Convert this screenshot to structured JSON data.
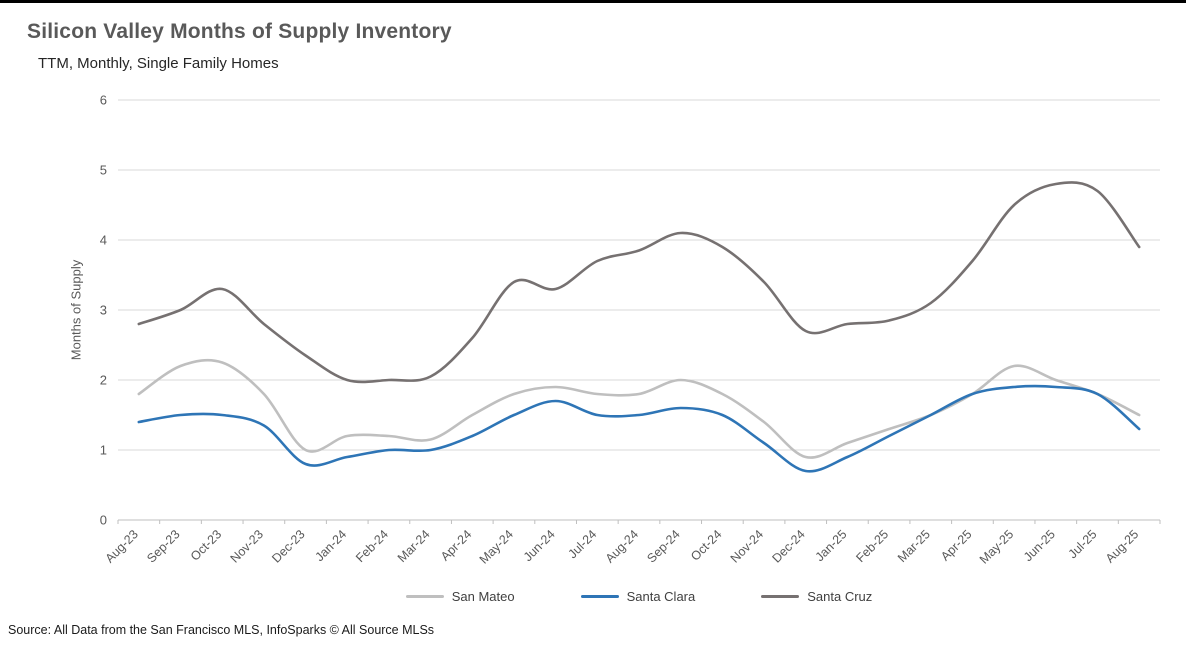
{
  "footer": {
    "source": "Source: All Data from the San Francisco MLS, InfoSparks © All Source MLSs"
  },
  "chart_data": {
    "type": "line",
    "line_style": "smooth",
    "title": "Silicon Valley Months of Supply Inventory",
    "subtitle": "TTM, Monthly, Single Family Homes",
    "xlabel": "",
    "ylabel": "Months of Supply",
    "ylim": [
      0,
      6
    ],
    "yticks": [
      0,
      1,
      2,
      3,
      4,
      5,
      6
    ],
    "grid": true,
    "legend_position": "bottom",
    "categories": [
      "Aug-23",
      "Sep-23",
      "Oct-23",
      "Nov-23",
      "Dec-23",
      "Jan-24",
      "Feb-24",
      "Mar-24",
      "Apr-24",
      "May-24",
      "Jun-24",
      "Jul-24",
      "Aug-24",
      "Sep-24",
      "Oct-24",
      "Nov-24",
      "Dec-24",
      "Jan-25",
      "Feb-25",
      "Mar-25",
      "Apr-25",
      "May-25",
      "Jun-25",
      "Jul-25",
      "Aug-25"
    ],
    "series": [
      {
        "name": "San Mateo",
        "color": "#BFBFBF",
        "values": [
          1.8,
          2.2,
          2.25,
          1.8,
          1.0,
          1.2,
          1.2,
          1.15,
          1.5,
          1.8,
          1.9,
          1.8,
          1.8,
          2.0,
          1.8,
          1.4,
          0.9,
          1.1,
          1.3,
          1.5,
          1.8,
          2.2,
          2.0,
          1.8,
          1.5
        ]
      },
      {
        "name": "Santa Clara",
        "color": "#2E75B6",
        "values": [
          1.4,
          1.5,
          1.5,
          1.35,
          0.8,
          0.9,
          1.0,
          1.0,
          1.2,
          1.5,
          1.7,
          1.5,
          1.5,
          1.6,
          1.5,
          1.1,
          0.7,
          0.9,
          1.2,
          1.5,
          1.8,
          1.9,
          1.9,
          1.8,
          1.3
        ]
      },
      {
        "name": "Santa Cruz",
        "color": "#767171",
        "values": [
          2.8,
          3.0,
          3.3,
          2.8,
          2.35,
          2.0,
          2.0,
          2.05,
          2.6,
          3.4,
          3.3,
          3.7,
          3.85,
          4.1,
          3.9,
          3.4,
          2.7,
          2.8,
          2.85,
          3.1,
          3.7,
          4.5,
          4.8,
          4.7,
          3.9
        ]
      }
    ],
    "axis_colors": {
      "gridline": "#D9D9D9",
      "axis_line": "#BFBFBF",
      "tick_label": "#595959"
    }
  }
}
